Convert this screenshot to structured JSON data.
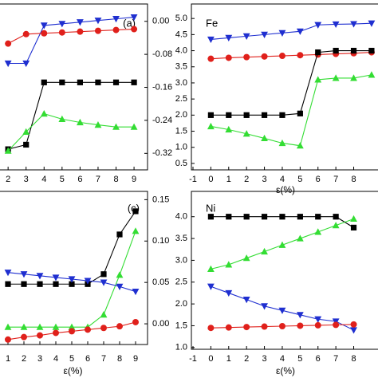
{
  "chart_data": [
    {
      "type": "line",
      "annotation": "(a)",
      "yaxis_position": "right",
      "x": [
        2,
        3,
        4,
        5,
        6,
        7,
        8,
        9
      ],
      "xlim": [
        1.55,
        9.75
      ],
      "xticks": [
        2,
        3,
        4,
        5,
        6,
        7,
        8,
        9
      ],
      "ylim": [
        -0.36,
        0.042
      ],
      "yticks": [
        {
          "value": 0,
          "label": "0.00"
        },
        -0.08,
        -0.16,
        -0.24,
        -0.32
      ],
      "series": [
        {
          "color": "#1f2fd0",
          "marker": "triangle-down",
          "values": [
            -0.102,
            -0.102,
            -0.01,
            -0.006,
            -0.002,
            0.002,
            0.006,
            0.01
          ]
        },
        {
          "color": "#e0201b",
          "marker": "circle",
          "values": [
            -0.054,
            -0.031,
            -0.029,
            -0.027,
            -0.025,
            -0.023,
            -0.021,
            -0.019
          ]
        },
        {
          "color": "#000000",
          "marker": "square",
          "values": [
            -0.31,
            -0.299,
            -0.148,
            -0.148,
            -0.148,
            -0.148,
            -0.148,
            -0.148
          ]
        },
        {
          "color": "#33dd33",
          "marker": "triangle-up",
          "values": [
            -0.314,
            -0.268,
            -0.224,
            -0.237,
            -0.245,
            -0.251,
            -0.256,
            -0.256
          ]
        }
      ]
    },
    {
      "type": "line",
      "annotation": "Fe",
      "yaxis_position": "left",
      "xlabel": "ε(%)",
      "x": [
        0,
        1,
        2,
        3,
        4,
        5,
        6,
        7,
        8,
        9
      ],
      "xlim": [
        -1,
        9.45
      ],
      "xticks": [
        -1,
        0,
        1,
        2,
        3,
        4,
        5,
        6,
        7,
        8
      ],
      "ylim": [
        0.3,
        5.45
      ],
      "yticks": [
        0.5,
        {
          "value": 1,
          "label": "1.0"
        },
        1.5,
        {
          "value": 2,
          "label": "2.0"
        },
        2.5,
        {
          "value": 3,
          "label": "3.0"
        },
        3.5,
        {
          "value": 4,
          "label": "4.0"
        },
        4.5,
        {
          "value": 5,
          "label": "5.0"
        }
      ],
      "series": [
        {
          "color": "#1f2fd0",
          "marker": "triangle-down",
          "values": [
            4.35,
            4.4,
            4.45,
            4.5,
            4.55,
            4.6,
            4.8,
            4.82,
            4.83,
            4.85
          ]
        },
        {
          "color": "#e0201b",
          "marker": "circle",
          "values": [
            3.75,
            3.78,
            3.8,
            3.82,
            3.84,
            3.86,
            3.88,
            3.9,
            3.92,
            3.95
          ]
        },
        {
          "color": "#000000",
          "marker": "square",
          "values": [
            2.0,
            2.0,
            2.0,
            2.0,
            2.0,
            2.05,
            3.95,
            4.0,
            4.0,
            4.0
          ]
        },
        {
          "color": "#33dd33",
          "marker": "triangle-up",
          "values": [
            1.65,
            1.55,
            1.42,
            1.28,
            1.13,
            1.05,
            3.1,
            3.15,
            3.15,
            3.25
          ]
        }
      ]
    },
    {
      "type": "line",
      "annotation": "(c)",
      "yaxis_position": "right",
      "xlabel": "ε(%)",
      "x": [
        1,
        2,
        3,
        4,
        5,
        6,
        7,
        8,
        9
      ],
      "xlim": [
        0.5,
        9.75
      ],
      "xticks": [
        1,
        2,
        3,
        4,
        5,
        6,
        7,
        8,
        9
      ],
      "ylim": [
        -0.025,
        0.16
      ],
      "yticks": [
        {
          "value": 0,
          "label": "0.00"
        },
        0.05,
        {
          "value": 0.1,
          "label": "0.10"
        },
        0.15
      ],
      "series": [
        {
          "color": "#000000",
          "marker": "square",
          "values": [
            0.048,
            0.048,
            0.048,
            0.048,
            0.048,
            0.048,
            0.06,
            0.108,
            0.136
          ]
        },
        {
          "color": "#33dd33",
          "marker": "triangle-up",
          "values": [
            -0.004,
            -0.004,
            -0.004,
            -0.004,
            -0.004,
            -0.004,
            0.011,
            0.059,
            0.112
          ]
        },
        {
          "color": "#1f2fd0",
          "marker": "triangle-down",
          "values": [
            0.062,
            0.06,
            0.058,
            0.056,
            0.054,
            0.052,
            0.05,
            0.045,
            0.039
          ]
        },
        {
          "color": "#e0201b",
          "marker": "circle",
          "values": [
            -0.019,
            -0.016,
            -0.014,
            -0.011,
            -0.009,
            -0.007,
            -0.005,
            -0.003,
            0.002
          ]
        }
      ]
    },
    {
      "type": "line",
      "annotation": "Ni",
      "yaxis_position": "left",
      "xlabel": "ε(%)",
      "x": [
        0,
        1,
        2,
        3,
        4,
        5,
        6,
        7,
        8
      ],
      "xlim": [
        -1,
        9.45
      ],
      "xticks": [
        -1,
        0,
        1,
        2,
        3,
        4,
        5,
        6,
        7,
        8
      ],
      "ylim": [
        0.96,
        4.58
      ],
      "yticks": [
        {
          "value": 1,
          "label": "1.0"
        },
        1.5,
        {
          "value": 2,
          "label": "2.0"
        },
        2.5,
        {
          "value": 3,
          "label": "3.0"
        },
        3.5,
        {
          "value": 4,
          "label": "4.0"
        }
      ],
      "series": [
        {
          "color": "#000000",
          "marker": "square",
          "values": [
            4.0,
            4.0,
            4.0,
            4.0,
            4.0,
            4.0,
            4.0,
            4.0,
            3.75
          ]
        },
        {
          "color": "#33dd33",
          "marker": "triangle-up",
          "values": [
            2.8,
            2.9,
            3.05,
            3.2,
            3.35,
            3.5,
            3.65,
            3.8,
            3.95
          ]
        },
        {
          "color": "#1f2fd0",
          "marker": "triangle-down",
          "values": [
            2.4,
            2.25,
            2.1,
            1.95,
            1.85,
            1.75,
            1.65,
            1.6,
            1.4
          ]
        },
        {
          "color": "#e0201b",
          "marker": "circle",
          "values": [
            1.45,
            1.46,
            1.47,
            1.48,
            1.49,
            1.5,
            1.51,
            1.52,
            1.53
          ]
        }
      ]
    }
  ]
}
